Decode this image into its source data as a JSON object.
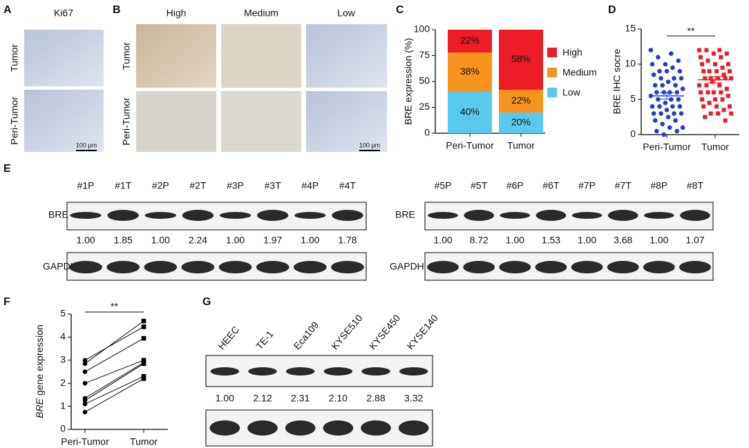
{
  "A": {
    "label": "A",
    "title": "Ki67",
    "row_labels": [
      "Tumor",
      "Peri-Tumor"
    ],
    "scale": "100 μm"
  },
  "B": {
    "label": "B",
    "columns": [
      "High",
      "Medium",
      "Low"
    ],
    "row_labels": [
      "Tumor",
      "Peri-Tumor"
    ],
    "scale": "100 μm"
  },
  "C": {
    "label": "C"
  },
  "D": {
    "label": "D"
  },
  "F": {
    "label": "F"
  },
  "chart_data": [
    {
      "type": "bar",
      "stacked": true,
      "ylabel": "BRE expression (%)",
      "categories": [
        "Peri-Tumor",
        "Tumor"
      ],
      "series": [
        {
          "name": "Low",
          "color": "#5bc8f0",
          "values": [
            40,
            20
          ],
          "value_labels": [
            "40%",
            "20%"
          ]
        },
        {
          "name": "Medium",
          "color": "#f7941d",
          "values": [
            38,
            22
          ],
          "value_labels": [
            "38%",
            "22%"
          ]
        },
        {
          "name": "High",
          "color": "#ee1c25",
          "values": [
            22,
            58
          ],
          "value_labels": [
            "22%",
            "58%"
          ]
        }
      ],
      "ylim": [
        0,
        100
      ],
      "yticks": [
        0,
        25,
        50,
        75,
        100
      ]
    },
    {
      "type": "scatter",
      "ylabel": "BRE IHC socre",
      "categories": [
        "Peri-Tumor",
        "Tumor"
      ],
      "annotation": "**",
      "series": [
        {
          "color": "#1f3ecf",
          "values": [
            12,
            11.5,
            11,
            10.5,
            10,
            10,
            9.5,
            9,
            9,
            9,
            8.5,
            8,
            8,
            8,
            7.5,
            7,
            7,
            7,
            6.5,
            6,
            6,
            6,
            6,
            5.5,
            5,
            5,
            5,
            4.5,
            4,
            4,
            4,
            4,
            3.5,
            3,
            3,
            3,
            3,
            2.5,
            2,
            2,
            1.5,
            1,
            1,
            0.5,
            0.5,
            0
          ]
        },
        {
          "color": "#ee1c25",
          "values": [
            12,
            12,
            12,
            11.5,
            11.5,
            11,
            11,
            10.5,
            10,
            10,
            10,
            9.5,
            9,
            9,
            9,
            9,
            8.5,
            8,
            8,
            8,
            8,
            8,
            7.5,
            7,
            7,
            7,
            6.5,
            6,
            6,
            6,
            6,
            5.5,
            5,
            5,
            5,
            4.5,
            4,
            4,
            4,
            3.5,
            3,
            3,
            3,
            2.5,
            2
          ]
        }
      ],
      "means": [
        5.5,
        7.8
      ],
      "sem": [
        0.45,
        0.45
      ],
      "ylim": [
        0,
        15
      ],
      "yticks": [
        0,
        5,
        10,
        15
      ]
    },
    {
      "type": "line",
      "ylabel_gene": "BRE",
      "ylabel": "gene expression",
      "categories": [
        "Peri-Tumor",
        "Tumor"
      ],
      "annotation": "**",
      "series": [
        {
          "values": [
            3.0,
            4.45
          ]
        },
        {
          "values": [
            2.85,
            4.7
          ]
        },
        {
          "values": [
            2.5,
            3.95
          ]
        },
        {
          "values": [
            2.0,
            3.0
          ]
        },
        {
          "values": [
            1.35,
            2.9
          ]
        },
        {
          "values": [
            1.25,
            2.85
          ]
        },
        {
          "values": [
            1.1,
            2.3
          ]
        },
        {
          "values": [
            0.75,
            2.2
          ]
        }
      ],
      "ylim": [
        0,
        5
      ],
      "yticks": [
        0,
        1,
        2,
        3,
        4,
        5
      ]
    }
  ],
  "E": {
    "label": "E",
    "blots": [
      {
        "lanes": [
          "#1P",
          "#1T",
          "#2P",
          "#2T",
          "#3P",
          "#3T",
          "#4P",
          "#4T"
        ],
        "protein": "BRE",
        "ratios": [
          "1.00",
          "1.85",
          "1.00",
          "2.24",
          "1.00",
          "1.97",
          "1.00",
          "1.78"
        ],
        "loading": "GAPDH"
      },
      {
        "lanes": [
          "#5P",
          "#5T",
          "#6P",
          "#6T",
          "#7P",
          "#7T",
          "#8P",
          "#8T"
        ],
        "protein": "BRE",
        "ratios": [
          "1.00",
          "8.72",
          "1.00",
          "1.53",
          "1.00",
          "3.68",
          "1.00",
          "1.07"
        ],
        "loading": "GAPDH"
      }
    ]
  },
  "G": {
    "label": "G",
    "lanes": [
      "HEEC",
      "TE-1",
      "Eca109",
      "KYSE510",
      "KYSE450",
      "KYSE140"
    ],
    "ratios": [
      "1.00",
      "2.12",
      "2.31",
      "2.10",
      "2.88",
      "3.32"
    ]
  }
}
